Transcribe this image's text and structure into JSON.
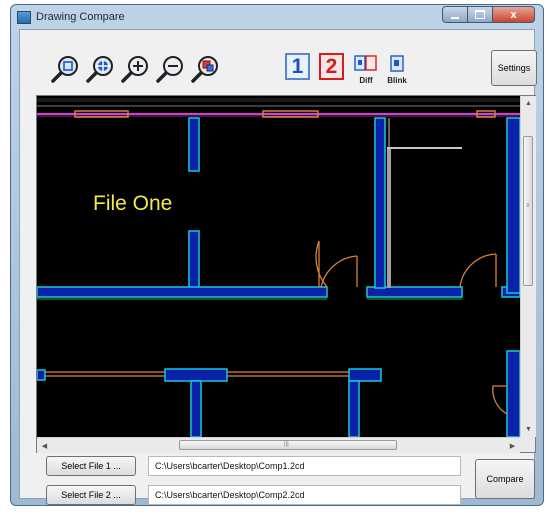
{
  "window": {
    "title": "Drawing Compare",
    "controls": {
      "minimize_icon": "minimize-icon",
      "maximize_icon": "maximize-icon",
      "close_glyph": "x"
    }
  },
  "toolbar": {
    "zoom_tools": [
      "zoom-window-icon",
      "pan-icon",
      "zoom-in-icon",
      "zoom-out-icon",
      "zoom-previous-icon"
    ],
    "file_one_label": "1",
    "file_two_label": "2",
    "diff_label": "Diff",
    "blink_label": "Blink",
    "settings_label": "Settings"
  },
  "viewer": {
    "caption": "File One",
    "caption_color": "#f5e94a",
    "background": "#000000"
  },
  "files": {
    "select_file_1_label": "Select File 1 ...",
    "select_file_2_label": "Select File 2 ...",
    "file_1_path": "C:\\Users\\bcarter\\Desktop\\Comp1.2cd",
    "file_2_path": "C:\\Users\\bcarter\\Desktop\\Comp2.2cd",
    "compare_label": "Compare"
  }
}
